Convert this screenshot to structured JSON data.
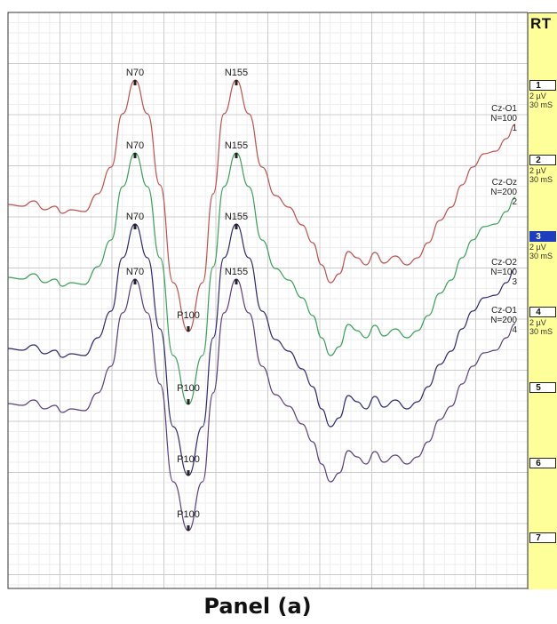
{
  "caption": "Panel (a)",
  "side_panel": {
    "title": "RT",
    "channels": [
      {
        "num": "1",
        "amp": "2 µV",
        "time": "30 mS",
        "active": false
      },
      {
        "num": "2",
        "amp": "2 µV",
        "time": "30 mS",
        "active": false
      },
      {
        "num": "3",
        "amp": "2 µV",
        "time": "30 mS",
        "active": true
      },
      {
        "num": "4",
        "amp": "2 µV",
        "time": "30 mS",
        "active": false
      },
      {
        "num": "5",
        "amp": "",
        "time": "",
        "active": false
      },
      {
        "num": "6",
        "amp": "",
        "time": "",
        "active": false
      },
      {
        "num": "7",
        "amp": "",
        "time": "",
        "active": false
      }
    ]
  },
  "chart_data": {
    "type": "line",
    "title": "",
    "xlabel": "",
    "ylabel": "",
    "grid": true,
    "series": [
      {
        "name": "Cz-O1 N=100 1",
        "label_lines": [
          "Cz-O1",
          "N=100",
          "1"
        ],
        "color": "#c0504d",
        "peaks": [
          {
            "label": "N70",
            "type": "N"
          },
          {
            "label": "P100",
            "type": "P"
          },
          {
            "label": "N155",
            "type": "N"
          }
        ]
      },
      {
        "name": "Cz-Oz N=200 2",
        "label_lines": [
          "Cz-Oz",
          "N=200",
          "2"
        ],
        "color": "#3aa05a",
        "peaks": [
          {
            "label": "N70",
            "type": "N"
          },
          {
            "label": "P100",
            "type": "P"
          },
          {
            "label": "N155",
            "type": "N"
          }
        ]
      },
      {
        "name": "Cz-O2 N=100 3",
        "label_lines": [
          "Cz-O2",
          "N=100",
          "3"
        ],
        "color": "#2e2a6e",
        "peaks": [
          {
            "label": "N70",
            "type": "N"
          },
          {
            "label": "P100",
            "type": "P"
          },
          {
            "label": "N155",
            "type": "N"
          }
        ]
      },
      {
        "name": "Cz-O1 N=200 4",
        "label_lines": [
          "Cz-O1",
          "N=200",
          "4"
        ],
        "color": "#5a3f7d",
        "peaks": [
          {
            "label": "N70",
            "type": "N"
          },
          {
            "label": "P100",
            "type": "P"
          },
          {
            "label": "N155",
            "type": "N"
          }
        ]
      }
    ]
  }
}
